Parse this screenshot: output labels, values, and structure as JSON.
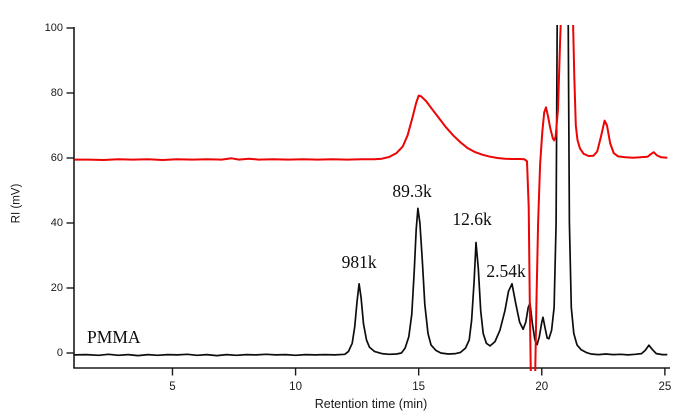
{
  "figure": {
    "background_color": "#ffffff",
    "axis_color": "#1a1a1a"
  },
  "chart_data": {
    "type": "line",
    "title": "",
    "xlabel": "Retention time (min)",
    "ylabel": "RI (mV)",
    "grid": false,
    "legend": "none",
    "x_axis": {
      "min": 1,
      "max": 25,
      "ticks": [
        "5",
        "10",
        "15",
        "20",
        "25"
      ],
      "tick_values": [
        5,
        10,
        15,
        20,
        25
      ]
    },
    "y_axis": {
      "min": -5,
      "max": 101,
      "ticks": [
        "0",
        "20",
        "40",
        "60",
        "80",
        "100"
      ],
      "tick_values": [
        0,
        20,
        40,
        60,
        80,
        100
      ]
    },
    "annotations": [
      {
        "label": "PMMA",
        "t": 1.53,
        "v": 1.6,
        "align": "left",
        "name": "pmma-label"
      },
      {
        "label": "981k",
        "t": 12.58,
        "v": 24.5,
        "align": "center",
        "name": "peak-label-981k"
      },
      {
        "label": "89.3k",
        "t": 14.73,
        "v": 46.5,
        "align": "center",
        "name": "peak-label-89.3k"
      },
      {
        "label": "12.6k",
        "t": 17.17,
        "v": 37.8,
        "align": "center",
        "name": "peak-label-12.6k"
      },
      {
        "label": "2.54k",
        "t": 18.55,
        "v": 21.8,
        "align": "center",
        "name": "peak-label-2.54k"
      }
    ],
    "peaks_black_trace": [
      {
        "label": "981k",
        "retention_time_min": 12.58,
        "ri_mv": 21.3
      },
      {
        "label": "89.3k",
        "retention_time_min": 14.97,
        "ri_mv": 44.5
      },
      {
        "label": "12.6k",
        "retention_time_min": 17.33,
        "ri_mv": 34.0
      },
      {
        "label": "2.54k",
        "retention_time_min": 18.79,
        "ri_mv": 21.3
      },
      {
        "label": "solvent/system peaks",
        "retention_time_min": 20.85,
        "ri_mv": "off-scale (>100)"
      }
    ],
    "peaks_red_trace": [
      {
        "retention_time_min": 15.0,
        "ri_mv": 79.2,
        "note": "broad polymer peak"
      },
      {
        "retention_time_min": 19.6,
        "ri_mv": "off-scale (<-5)",
        "note": "negative dip"
      },
      {
        "retention_time_min": 20.17,
        "ri_mv": 75.6
      },
      {
        "retention_time_min": 21.0,
        "ri_mv": "off-scale (>100)"
      },
      {
        "retention_time_min": 22.55,
        "ri_mv": 71.5
      },
      {
        "retention_time_min": 24.55,
        "ri_mv": 61.8
      }
    ],
    "series": [
      {
        "id": "black-trace",
        "description": "PMMA calibration standards chromatogram",
        "color": "#0d0d0d",
        "stroke_width": 1.7,
        "baseline_mv": -0.5,
        "points": [
          [
            1.02,
            -0.6
          ],
          [
            1.5,
            -0.5
          ],
          [
            2.0,
            -0.7
          ],
          [
            2.4,
            -0.4
          ],
          [
            2.8,
            -0.7
          ],
          [
            3.2,
            -0.5
          ],
          [
            3.6,
            -0.8
          ],
          [
            4.0,
            -0.5
          ],
          [
            4.4,
            -0.7
          ],
          [
            4.8,
            -0.5
          ],
          [
            5.2,
            -0.6
          ],
          [
            5.6,
            -0.4
          ],
          [
            6.0,
            -0.7
          ],
          [
            6.4,
            -0.5
          ],
          [
            6.8,
            -0.8
          ],
          [
            7.2,
            -0.5
          ],
          [
            7.6,
            -0.7
          ],
          [
            8.0,
            -0.5
          ],
          [
            8.4,
            -0.6
          ],
          [
            8.8,
            -0.4
          ],
          [
            9.2,
            -0.6
          ],
          [
            9.6,
            -0.5
          ],
          [
            10.0,
            -0.7
          ],
          [
            10.4,
            -0.5
          ],
          [
            10.8,
            -0.6
          ],
          [
            11.2,
            -0.5
          ],
          [
            11.6,
            -0.6
          ],
          [
            12.0,
            -0.4
          ],
          [
            12.15,
            0.5
          ],
          [
            12.3,
            3
          ],
          [
            12.4,
            8
          ],
          [
            12.5,
            16
          ],
          [
            12.58,
            21.3
          ],
          [
            12.66,
            17
          ],
          [
            12.76,
            9
          ],
          [
            12.88,
            4
          ],
          [
            13.0,
            1.8
          ],
          [
            13.2,
            0.5
          ],
          [
            13.5,
            -0.2
          ],
          [
            13.8,
            -0.4
          ],
          [
            14.1,
            -0.3
          ],
          [
            14.3,
            0
          ],
          [
            14.45,
            1.5
          ],
          [
            14.6,
            5
          ],
          [
            14.72,
            12
          ],
          [
            14.82,
            25
          ],
          [
            14.9,
            38
          ],
          [
            14.97,
            44.5
          ],
          [
            15.05,
            40
          ],
          [
            15.15,
            28
          ],
          [
            15.25,
            15
          ],
          [
            15.38,
            6
          ],
          [
            15.5,
            2.5
          ],
          [
            15.7,
            0.8
          ],
          [
            15.9,
            0
          ],
          [
            16.2,
            -0.3
          ],
          [
            16.5,
            -0.2
          ],
          [
            16.7,
            0.2
          ],
          [
            16.9,
            1.5
          ],
          [
            17.05,
            4
          ],
          [
            17.15,
            10
          ],
          [
            17.25,
            22
          ],
          [
            17.33,
            34
          ],
          [
            17.42,
            26
          ],
          [
            17.52,
            13
          ],
          [
            17.62,
            6
          ],
          [
            17.75,
            3
          ],
          [
            17.9,
            2.2
          ],
          [
            18.1,
            3.5
          ],
          [
            18.3,
            7
          ],
          [
            18.5,
            13
          ],
          [
            18.65,
            19
          ],
          [
            18.79,
            21.3
          ],
          [
            18.95,
            15
          ],
          [
            19.1,
            9.5
          ],
          [
            19.24,
            7.3
          ],
          [
            19.35,
            9.5
          ],
          [
            19.45,
            14
          ],
          [
            19.52,
            15.3
          ],
          [
            19.62,
            9
          ],
          [
            19.72,
            4
          ],
          [
            19.81,
            2.6
          ],
          [
            19.9,
            5
          ],
          [
            20.0,
            9.5
          ],
          [
            20.05,
            11
          ],
          [
            20.14,
            7.5
          ],
          [
            20.22,
            4.6
          ],
          [
            20.29,
            4.4
          ],
          [
            20.4,
            7
          ],
          [
            20.5,
            14
          ],
          [
            20.58,
            40
          ],
          [
            20.63,
            108
          ],
          [
            21.07,
            108
          ],
          [
            21.12,
            40
          ],
          [
            21.2,
            14
          ],
          [
            21.3,
            6
          ],
          [
            21.43,
            2.5
          ],
          [
            21.6,
            1
          ],
          [
            21.8,
            0.2
          ],
          [
            22.0,
            -0.3
          ],
          [
            22.3,
            -0.5
          ],
          [
            22.6,
            -0.3
          ],
          [
            22.9,
            -0.5
          ],
          [
            23.2,
            -0.4
          ],
          [
            23.5,
            -0.6
          ],
          [
            23.8,
            -0.4
          ],
          [
            24.05,
            -0.2
          ],
          [
            24.2,
            0.8
          ],
          [
            24.35,
            2.4
          ],
          [
            24.5,
            1
          ],
          [
            24.65,
            -0.2
          ],
          [
            24.9,
            -0.5
          ],
          [
            25.1,
            -0.5
          ]
        ]
      },
      {
        "id": "red-trace",
        "description": "polymer sample chromatogram (offset baseline ~59.5 mV)",
        "color": "#ec0505",
        "stroke_width": 2.0,
        "baseline_mv": 59.5,
        "points": [
          [
            1.02,
            59.5
          ],
          [
            1.6,
            59.5
          ],
          [
            2.2,
            59.4
          ],
          [
            2.8,
            59.6
          ],
          [
            3.4,
            59.5
          ],
          [
            4.0,
            59.6
          ],
          [
            4.6,
            59.4
          ],
          [
            5.2,
            59.6
          ],
          [
            5.8,
            59.5
          ],
          [
            6.4,
            59.6
          ],
          [
            7.0,
            59.5
          ],
          [
            7.4,
            59.9
          ],
          [
            7.7,
            59.5
          ],
          [
            8.1,
            59.8
          ],
          [
            8.5,
            59.5
          ],
          [
            9.1,
            59.6
          ],
          [
            9.7,
            59.5
          ],
          [
            10.3,
            59.6
          ],
          [
            10.9,
            59.5
          ],
          [
            11.5,
            59.6
          ],
          [
            12.1,
            59.5
          ],
          [
            12.7,
            59.6
          ],
          [
            13.2,
            59.6
          ],
          [
            13.5,
            59.8
          ],
          [
            13.8,
            60.3
          ],
          [
            14.1,
            61.5
          ],
          [
            14.35,
            63.5
          ],
          [
            14.55,
            67
          ],
          [
            14.75,
            72.5
          ],
          [
            14.9,
            77
          ],
          [
            15.0,
            79.2
          ],
          [
            15.1,
            79
          ],
          [
            15.3,
            77.5
          ],
          [
            15.55,
            75
          ],
          [
            15.8,
            72.5
          ],
          [
            16.1,
            69.5
          ],
          [
            16.4,
            67
          ],
          [
            16.7,
            64.8
          ],
          [
            17.0,
            63
          ],
          [
            17.3,
            61.8
          ],
          [
            17.6,
            61
          ],
          [
            17.9,
            60.4
          ],
          [
            18.2,
            60
          ],
          [
            18.5,
            59.8
          ],
          [
            18.8,
            59.7
          ],
          [
            19.1,
            59.7
          ],
          [
            19.3,
            59.6
          ],
          [
            19.4,
            59
          ],
          [
            19.47,
            45
          ],
          [
            19.52,
            10
          ],
          [
            19.56,
            -8
          ],
          [
            19.73,
            -8
          ],
          [
            19.78,
            15
          ],
          [
            19.85,
            40
          ],
          [
            19.93,
            58
          ],
          [
            20.02,
            68
          ],
          [
            20.1,
            74
          ],
          [
            20.17,
            75.6
          ],
          [
            20.25,
            73
          ],
          [
            20.35,
            69
          ],
          [
            20.45,
            66
          ],
          [
            20.5,
            65.4
          ],
          [
            20.56,
            66.5
          ],
          [
            20.66,
            75
          ],
          [
            20.74,
            95
          ],
          [
            20.8,
            108
          ],
          [
            21.25,
            108
          ],
          [
            21.32,
            85
          ],
          [
            21.38,
            70
          ],
          [
            21.45,
            65.5
          ],
          [
            21.55,
            63
          ],
          [
            21.7,
            61.3
          ],
          [
            21.9,
            60.6
          ],
          [
            22.1,
            60.7
          ],
          [
            22.25,
            62
          ],
          [
            22.4,
            66.5
          ],
          [
            22.55,
            71.5
          ],
          [
            22.65,
            70
          ],
          [
            22.78,
            64.5
          ],
          [
            22.92,
            61.5
          ],
          [
            23.1,
            60.5
          ],
          [
            23.4,
            60.2
          ],
          [
            23.7,
            60.1
          ],
          [
            24.0,
            60.2
          ],
          [
            24.3,
            60.4
          ],
          [
            24.45,
            61.3
          ],
          [
            24.55,
            61.8
          ],
          [
            24.68,
            60.8
          ],
          [
            24.85,
            60.2
          ],
          [
            25.1,
            60.1
          ]
        ]
      }
    ]
  }
}
